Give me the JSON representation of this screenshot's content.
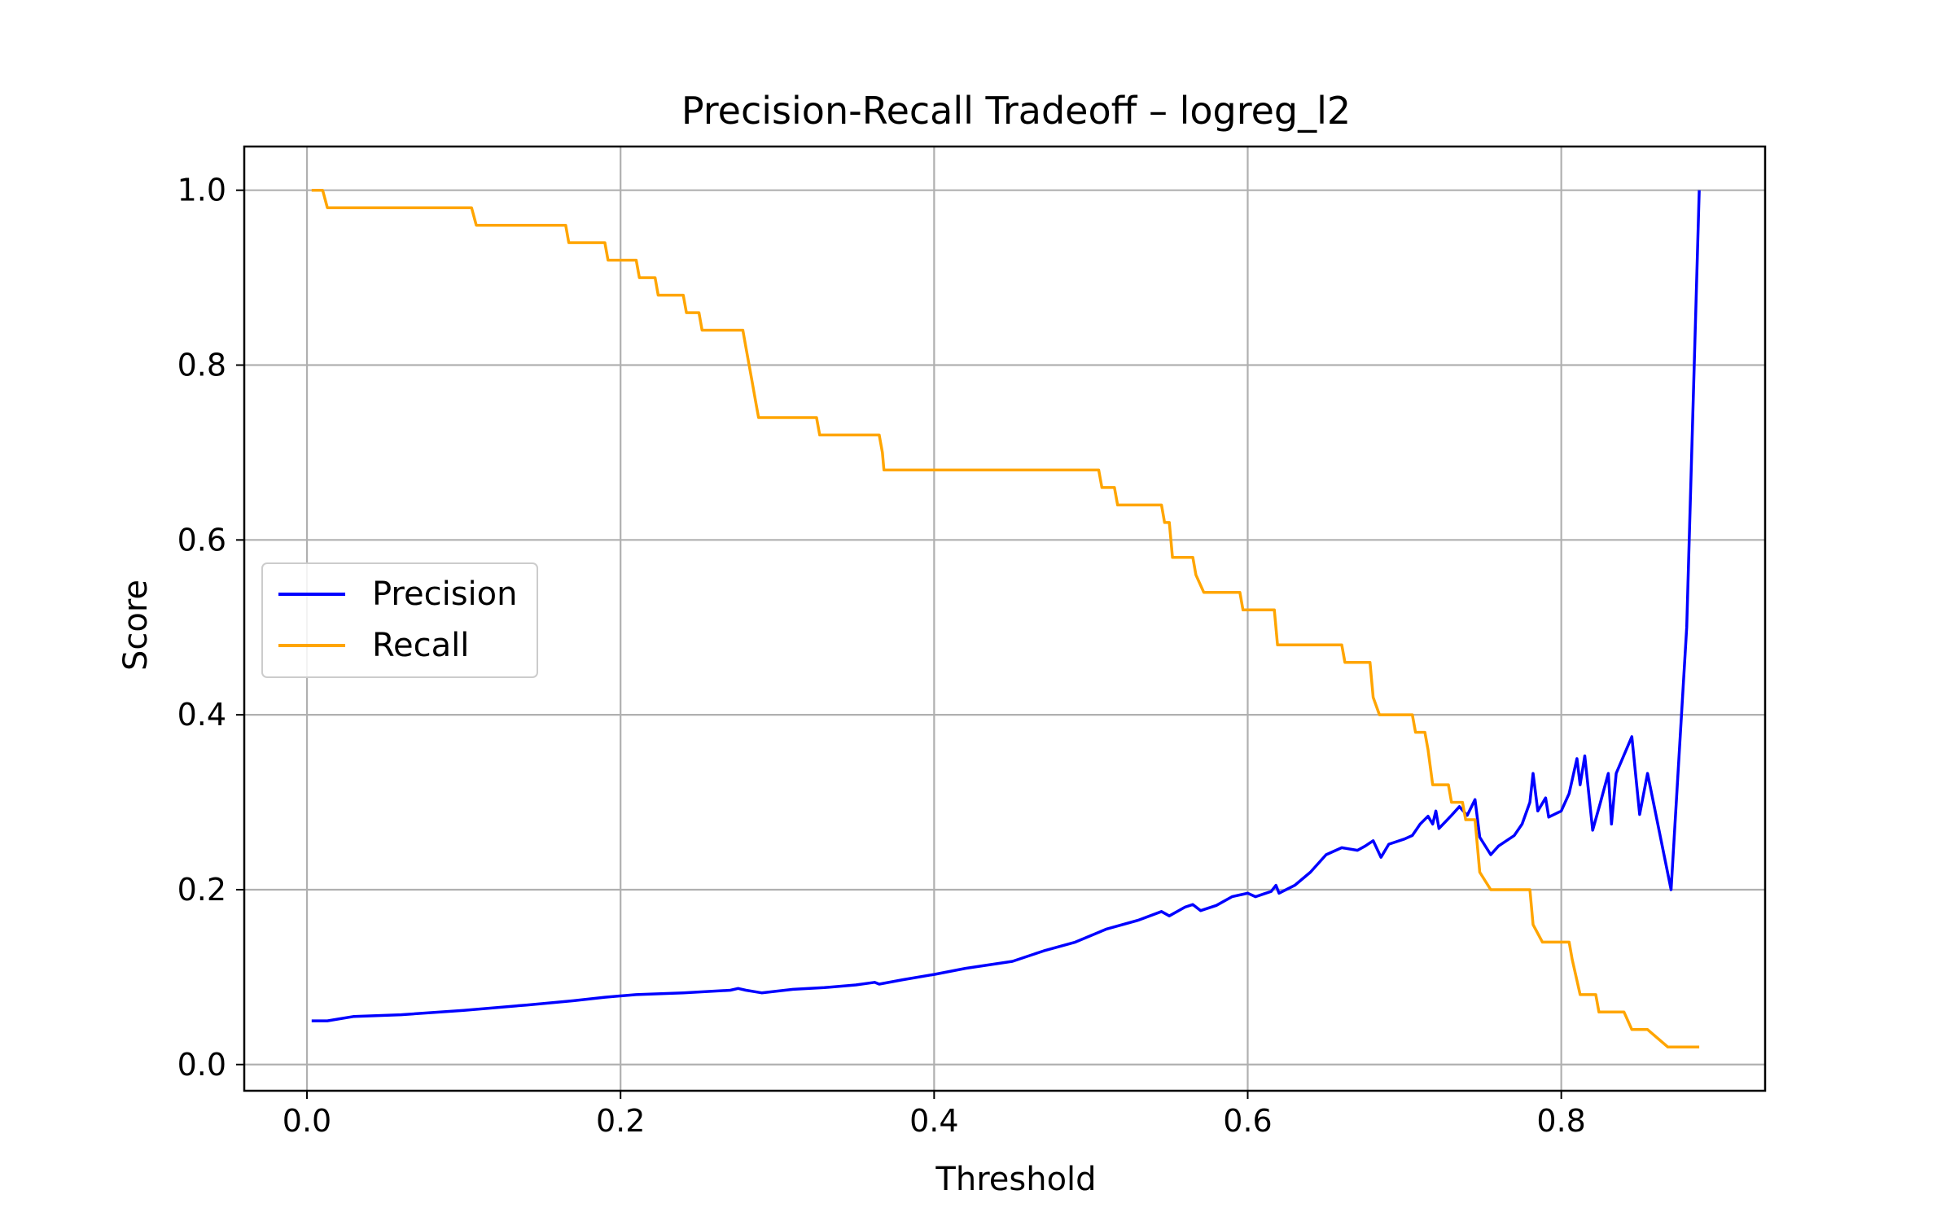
{
  "chart_data": {
    "type": "line",
    "title": "Precision-Recall Tradeoff – logreg_l2",
    "xlabel": "Threshold",
    "ylabel": "Score",
    "xlim": [
      -0.04,
      0.93
    ],
    "ylim": [
      -0.03,
      1.05
    ],
    "xticks": [
      0.0,
      0.2,
      0.4,
      0.6,
      0.8
    ],
    "xtick_labels": [
      "0.0",
      "0.2",
      "0.4",
      "0.6",
      "0.8"
    ],
    "yticks": [
      0.0,
      0.2,
      0.4,
      0.6,
      0.8,
      1.0
    ],
    "ytick_labels": [
      "0.0",
      "0.2",
      "0.4",
      "0.6",
      "0.8",
      "1.0"
    ],
    "grid": true,
    "legend": {
      "placement": "center-left"
    },
    "series": [
      {
        "name": "Precision",
        "color": "#0000ff",
        "points": [
          [
            0.003,
            0.05
          ],
          [
            0.013,
            0.05
          ],
          [
            0.02,
            0.052
          ],
          [
            0.03,
            0.055
          ],
          [
            0.06,
            0.057
          ],
          [
            0.1,
            0.062
          ],
          [
            0.14,
            0.068
          ],
          [
            0.17,
            0.073
          ],
          [
            0.19,
            0.077
          ],
          [
            0.21,
            0.08
          ],
          [
            0.24,
            0.082
          ],
          [
            0.27,
            0.085
          ],
          [
            0.275,
            0.087
          ],
          [
            0.28,
            0.085
          ],
          [
            0.29,
            0.082
          ],
          [
            0.31,
            0.086
          ],
          [
            0.33,
            0.088
          ],
          [
            0.35,
            0.091
          ],
          [
            0.362,
            0.094
          ],
          [
            0.365,
            0.092
          ],
          [
            0.38,
            0.097
          ],
          [
            0.4,
            0.103
          ],
          [
            0.42,
            0.11
          ],
          [
            0.45,
            0.118
          ],
          [
            0.47,
            0.13
          ],
          [
            0.49,
            0.14
          ],
          [
            0.51,
            0.155
          ],
          [
            0.53,
            0.165
          ],
          [
            0.545,
            0.175
          ],
          [
            0.55,
            0.17
          ],
          [
            0.56,
            0.18
          ],
          [
            0.565,
            0.183
          ],
          [
            0.57,
            0.176
          ],
          [
            0.58,
            0.182
          ],
          [
            0.59,
            0.192
          ],
          [
            0.6,
            0.196
          ],
          [
            0.605,
            0.192
          ],
          [
            0.61,
            0.195
          ],
          [
            0.615,
            0.198
          ],
          [
            0.618,
            0.205
          ],
          [
            0.62,
            0.196
          ],
          [
            0.63,
            0.205
          ],
          [
            0.64,
            0.22
          ],
          [
            0.65,
            0.24
          ],
          [
            0.66,
            0.248
          ],
          [
            0.67,
            0.245
          ],
          [
            0.675,
            0.25
          ],
          [
            0.68,
            0.256
          ],
          [
            0.685,
            0.237
          ],
          [
            0.69,
            0.252
          ],
          [
            0.7,
            0.258
          ],
          [
            0.705,
            0.262
          ],
          [
            0.71,
            0.275
          ],
          [
            0.715,
            0.284
          ],
          [
            0.718,
            0.275
          ],
          [
            0.72,
            0.29
          ],
          [
            0.722,
            0.27
          ],
          [
            0.73,
            0.285
          ],
          [
            0.735,
            0.295
          ],
          [
            0.74,
            0.285
          ],
          [
            0.745,
            0.303
          ],
          [
            0.748,
            0.26
          ],
          [
            0.755,
            0.24
          ],
          [
            0.76,
            0.25
          ],
          [
            0.77,
            0.262
          ],
          [
            0.775,
            0.275
          ],
          [
            0.78,
            0.3
          ],
          [
            0.782,
            0.333
          ],
          [
            0.785,
            0.29
          ],
          [
            0.79,
            0.305
          ],
          [
            0.792,
            0.283
          ],
          [
            0.8,
            0.29
          ],
          [
            0.805,
            0.31
          ],
          [
            0.81,
            0.35
          ],
          [
            0.812,
            0.32
          ],
          [
            0.815,
            0.353
          ],
          [
            0.82,
            0.268
          ],
          [
            0.825,
            0.3
          ],
          [
            0.83,
            0.333
          ],
          [
            0.832,
            0.275
          ],
          [
            0.835,
            0.333
          ],
          [
            0.845,
            0.375
          ],
          [
            0.85,
            0.286
          ],
          [
            0.855,
            0.333
          ],
          [
            0.87,
            0.2
          ],
          [
            0.88,
            0.5
          ],
          [
            0.888,
            1.0
          ]
        ]
      },
      {
        "name": "Recall",
        "color": "#ffa500",
        "points": [
          [
            0.003,
            1.0
          ],
          [
            0.01,
            1.0
          ],
          [
            0.013,
            0.98
          ],
          [
            0.105,
            0.98
          ],
          [
            0.108,
            0.96
          ],
          [
            0.165,
            0.96
          ],
          [
            0.167,
            0.94
          ],
          [
            0.19,
            0.94
          ],
          [
            0.192,
            0.92
          ],
          [
            0.21,
            0.92
          ],
          [
            0.212,
            0.9
          ],
          [
            0.222,
            0.9
          ],
          [
            0.224,
            0.88
          ],
          [
            0.24,
            0.88
          ],
          [
            0.242,
            0.86
          ],
          [
            0.25,
            0.86
          ],
          [
            0.252,
            0.84
          ],
          [
            0.278,
            0.84
          ],
          [
            0.28,
            0.82
          ],
          [
            0.282,
            0.8
          ],
          [
            0.284,
            0.78
          ],
          [
            0.286,
            0.76
          ],
          [
            0.288,
            0.74
          ],
          [
            0.325,
            0.74
          ],
          [
            0.327,
            0.72
          ],
          [
            0.365,
            0.72
          ],
          [
            0.367,
            0.7
          ],
          [
            0.368,
            0.68
          ],
          [
            0.505,
            0.68
          ],
          [
            0.507,
            0.66
          ],
          [
            0.515,
            0.66
          ],
          [
            0.517,
            0.64
          ],
          [
            0.545,
            0.64
          ],
          [
            0.547,
            0.62
          ],
          [
            0.55,
            0.62
          ],
          [
            0.552,
            0.58
          ],
          [
            0.565,
            0.58
          ],
          [
            0.567,
            0.56
          ],
          [
            0.572,
            0.54
          ],
          [
            0.595,
            0.54
          ],
          [
            0.597,
            0.52
          ],
          [
            0.617,
            0.52
          ],
          [
            0.619,
            0.48
          ],
          [
            0.66,
            0.48
          ],
          [
            0.662,
            0.46
          ],
          [
            0.678,
            0.46
          ],
          [
            0.68,
            0.42
          ],
          [
            0.684,
            0.4
          ],
          [
            0.705,
            0.4
          ],
          [
            0.707,
            0.38
          ],
          [
            0.713,
            0.38
          ],
          [
            0.715,
            0.36
          ],
          [
            0.718,
            0.32
          ],
          [
            0.728,
            0.32
          ],
          [
            0.73,
            0.3
          ],
          [
            0.737,
            0.3
          ],
          [
            0.739,
            0.28
          ],
          [
            0.745,
            0.28
          ],
          [
            0.748,
            0.22
          ],
          [
            0.755,
            0.2
          ],
          [
            0.78,
            0.2
          ],
          [
            0.782,
            0.16
          ],
          [
            0.788,
            0.14
          ],
          [
            0.805,
            0.14
          ],
          [
            0.807,
            0.12
          ],
          [
            0.812,
            0.08
          ],
          [
            0.822,
            0.08
          ],
          [
            0.824,
            0.06
          ],
          [
            0.84,
            0.06
          ],
          [
            0.845,
            0.04
          ],
          [
            0.855,
            0.04
          ],
          [
            0.868,
            0.02
          ],
          [
            0.888,
            0.02
          ]
        ]
      }
    ]
  }
}
